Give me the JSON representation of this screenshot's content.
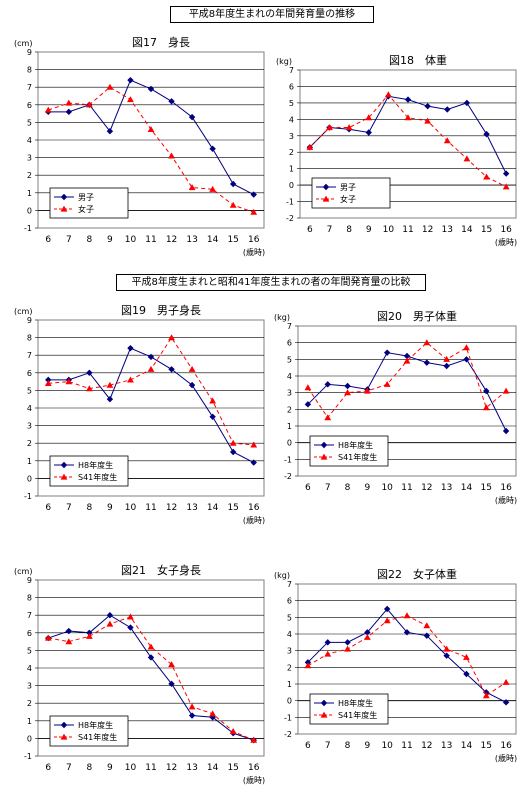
{
  "sections": [
    {
      "title": "平成8年度生まれの年間発育量の推移"
    },
    {
      "title": "平成8年度生まれと昭和41年度生まれの者の年間発育量の比較"
    }
  ],
  "chart_data": [
    {
      "type": "line",
      "title": "図17　身長",
      "unit": "(cm)",
      "xsuffix": "(歳時)",
      "categories": [
        "6",
        "7",
        "8",
        "9",
        "10",
        "11",
        "12",
        "13",
        "14",
        "15",
        "16"
      ],
      "ylim": [
        -1,
        9
      ],
      "yticks": [
        -1,
        0,
        1,
        2,
        3,
        4,
        5,
        6,
        7,
        8,
        9
      ],
      "grid": true,
      "legend_position": "bottom-left",
      "series": [
        {
          "name": "男子",
          "values": [
            5.6,
            5.6,
            6.0,
            4.5,
            7.4,
            6.9,
            6.2,
            5.3,
            3.5,
            1.5,
            0.9
          ],
          "color": "#000080",
          "marker": "diamond",
          "dash": false
        },
        {
          "name": "女子",
          "values": [
            5.7,
            6.1,
            6.0,
            7.0,
            6.3,
            4.6,
            3.1,
            1.3,
            1.2,
            0.3,
            -0.1
          ],
          "color": "#FF0000",
          "marker": "triangle",
          "dash": true
        }
      ]
    },
    {
      "type": "line",
      "title": "図18　体重",
      "unit": "(kg)",
      "xsuffix": "(歳時)",
      "categories": [
        "6",
        "7",
        "8",
        "9",
        "10",
        "11",
        "12",
        "13",
        "14",
        "15",
        "16"
      ],
      "ylim": [
        -2,
        7
      ],
      "yticks": [
        -2,
        -1,
        0,
        1,
        2,
        3,
        4,
        5,
        6,
        7
      ],
      "grid": true,
      "legend_position": "bottom-left",
      "series": [
        {
          "name": "男子",
          "values": [
            2.3,
            3.5,
            3.4,
            3.2,
            5.4,
            5.2,
            4.8,
            4.6,
            5.0,
            3.1,
            0.7
          ],
          "color": "#000080",
          "marker": "diamond",
          "dash": false
        },
        {
          "name": "女子",
          "values": [
            2.3,
            3.5,
            3.5,
            4.1,
            5.5,
            4.1,
            3.9,
            2.7,
            1.6,
            0.5,
            -0.1
          ],
          "color": "#FF0000",
          "marker": "triangle",
          "dash": true
        }
      ]
    },
    {
      "type": "line",
      "title": "図19　男子身長",
      "unit": "(cm)",
      "xsuffix": "(歳時)",
      "categories": [
        "6",
        "7",
        "8",
        "9",
        "10",
        "11",
        "12",
        "13",
        "14",
        "15",
        "16"
      ],
      "ylim": [
        -1,
        9
      ],
      "yticks": [
        -1,
        0,
        1,
        2,
        3,
        4,
        5,
        6,
        7,
        8,
        9
      ],
      "grid": true,
      "legend_position": "bottom-left",
      "series": [
        {
          "name": "H8年度生",
          "values": [
            5.6,
            5.6,
            6.0,
            4.5,
            7.4,
            6.9,
            6.2,
            5.3,
            3.5,
            1.5,
            0.9
          ],
          "color": "#000080",
          "marker": "diamond",
          "dash": false
        },
        {
          "name": "S41年度生",
          "values": [
            5.4,
            5.5,
            5.1,
            5.3,
            5.6,
            6.2,
            8.0,
            6.2,
            4.4,
            2.0,
            1.9
          ],
          "color": "#FF0000",
          "marker": "triangle",
          "dash": true
        }
      ]
    },
    {
      "type": "line",
      "title": "図20　男子体重",
      "unit": "(kg)",
      "xsuffix": "(歳時)",
      "categories": [
        "6",
        "7",
        "8",
        "9",
        "10",
        "11",
        "12",
        "13",
        "14",
        "15",
        "16"
      ],
      "ylim": [
        -2,
        7
      ],
      "yticks": [
        -2,
        -1,
        0,
        1,
        2,
        3,
        4,
        5,
        6,
        7
      ],
      "grid": true,
      "legend_position": "bottom-left",
      "series": [
        {
          "name": "H8年度生",
          "values": [
            2.3,
            3.5,
            3.4,
            3.2,
            5.4,
            5.2,
            4.8,
            4.6,
            5.0,
            3.1,
            0.7
          ],
          "color": "#000080",
          "marker": "diamond",
          "dash": false
        },
        {
          "name": "S41年度生",
          "values": [
            3.3,
            1.5,
            3.0,
            3.1,
            3.5,
            4.9,
            6.0,
            5.0,
            5.7,
            2.1,
            3.1
          ],
          "color": "#FF0000",
          "marker": "triangle",
          "dash": true
        }
      ]
    },
    {
      "type": "line",
      "title": "図21　女子身長",
      "unit": "(cm)",
      "xsuffix": "(歳時)",
      "categories": [
        "6",
        "7",
        "8",
        "9",
        "10",
        "11",
        "12",
        "13",
        "14",
        "15",
        "16"
      ],
      "ylim": [
        -1,
        9
      ],
      "yticks": [
        -1,
        0,
        1,
        2,
        3,
        4,
        5,
        6,
        7,
        8,
        9
      ],
      "grid": true,
      "legend_position": "bottom-left",
      "series": [
        {
          "name": "H8年度生",
          "values": [
            5.7,
            6.1,
            6.0,
            7.0,
            6.3,
            4.6,
            3.1,
            1.3,
            1.2,
            0.3,
            -0.1
          ],
          "color": "#000080",
          "marker": "diamond",
          "dash": false
        },
        {
          "name": "S41年度生",
          "values": [
            5.7,
            5.5,
            5.8,
            6.5,
            6.9,
            5.2,
            4.2,
            1.8,
            1.4,
            0.4,
            -0.1
          ],
          "color": "#FF0000",
          "marker": "triangle",
          "dash": true
        }
      ]
    },
    {
      "type": "line",
      "title": "図22　女子体重",
      "unit": "(kg)",
      "xsuffix": "(歳時)",
      "categories": [
        "6",
        "7",
        "8",
        "9",
        "10",
        "11",
        "12",
        "13",
        "14",
        "15",
        "16"
      ],
      "ylim": [
        -2,
        7
      ],
      "yticks": [
        -2,
        -1,
        0,
        1,
        2,
        3,
        4,
        5,
        6,
        7
      ],
      "grid": true,
      "legend_position": "bottom-left",
      "series": [
        {
          "name": "H8年度生",
          "values": [
            2.3,
            3.5,
            3.5,
            4.1,
            5.5,
            4.1,
            3.9,
            2.7,
            1.6,
            0.5,
            -0.1
          ],
          "color": "#000080",
          "marker": "diamond",
          "dash": false
        },
        {
          "name": "S41年度生",
          "values": [
            2.1,
            2.8,
            3.1,
            3.8,
            4.8,
            5.1,
            4.5,
            3.1,
            2.6,
            0.3,
            1.1
          ],
          "color": "#FF0000",
          "marker": "triangle",
          "dash": true
        }
      ]
    }
  ]
}
